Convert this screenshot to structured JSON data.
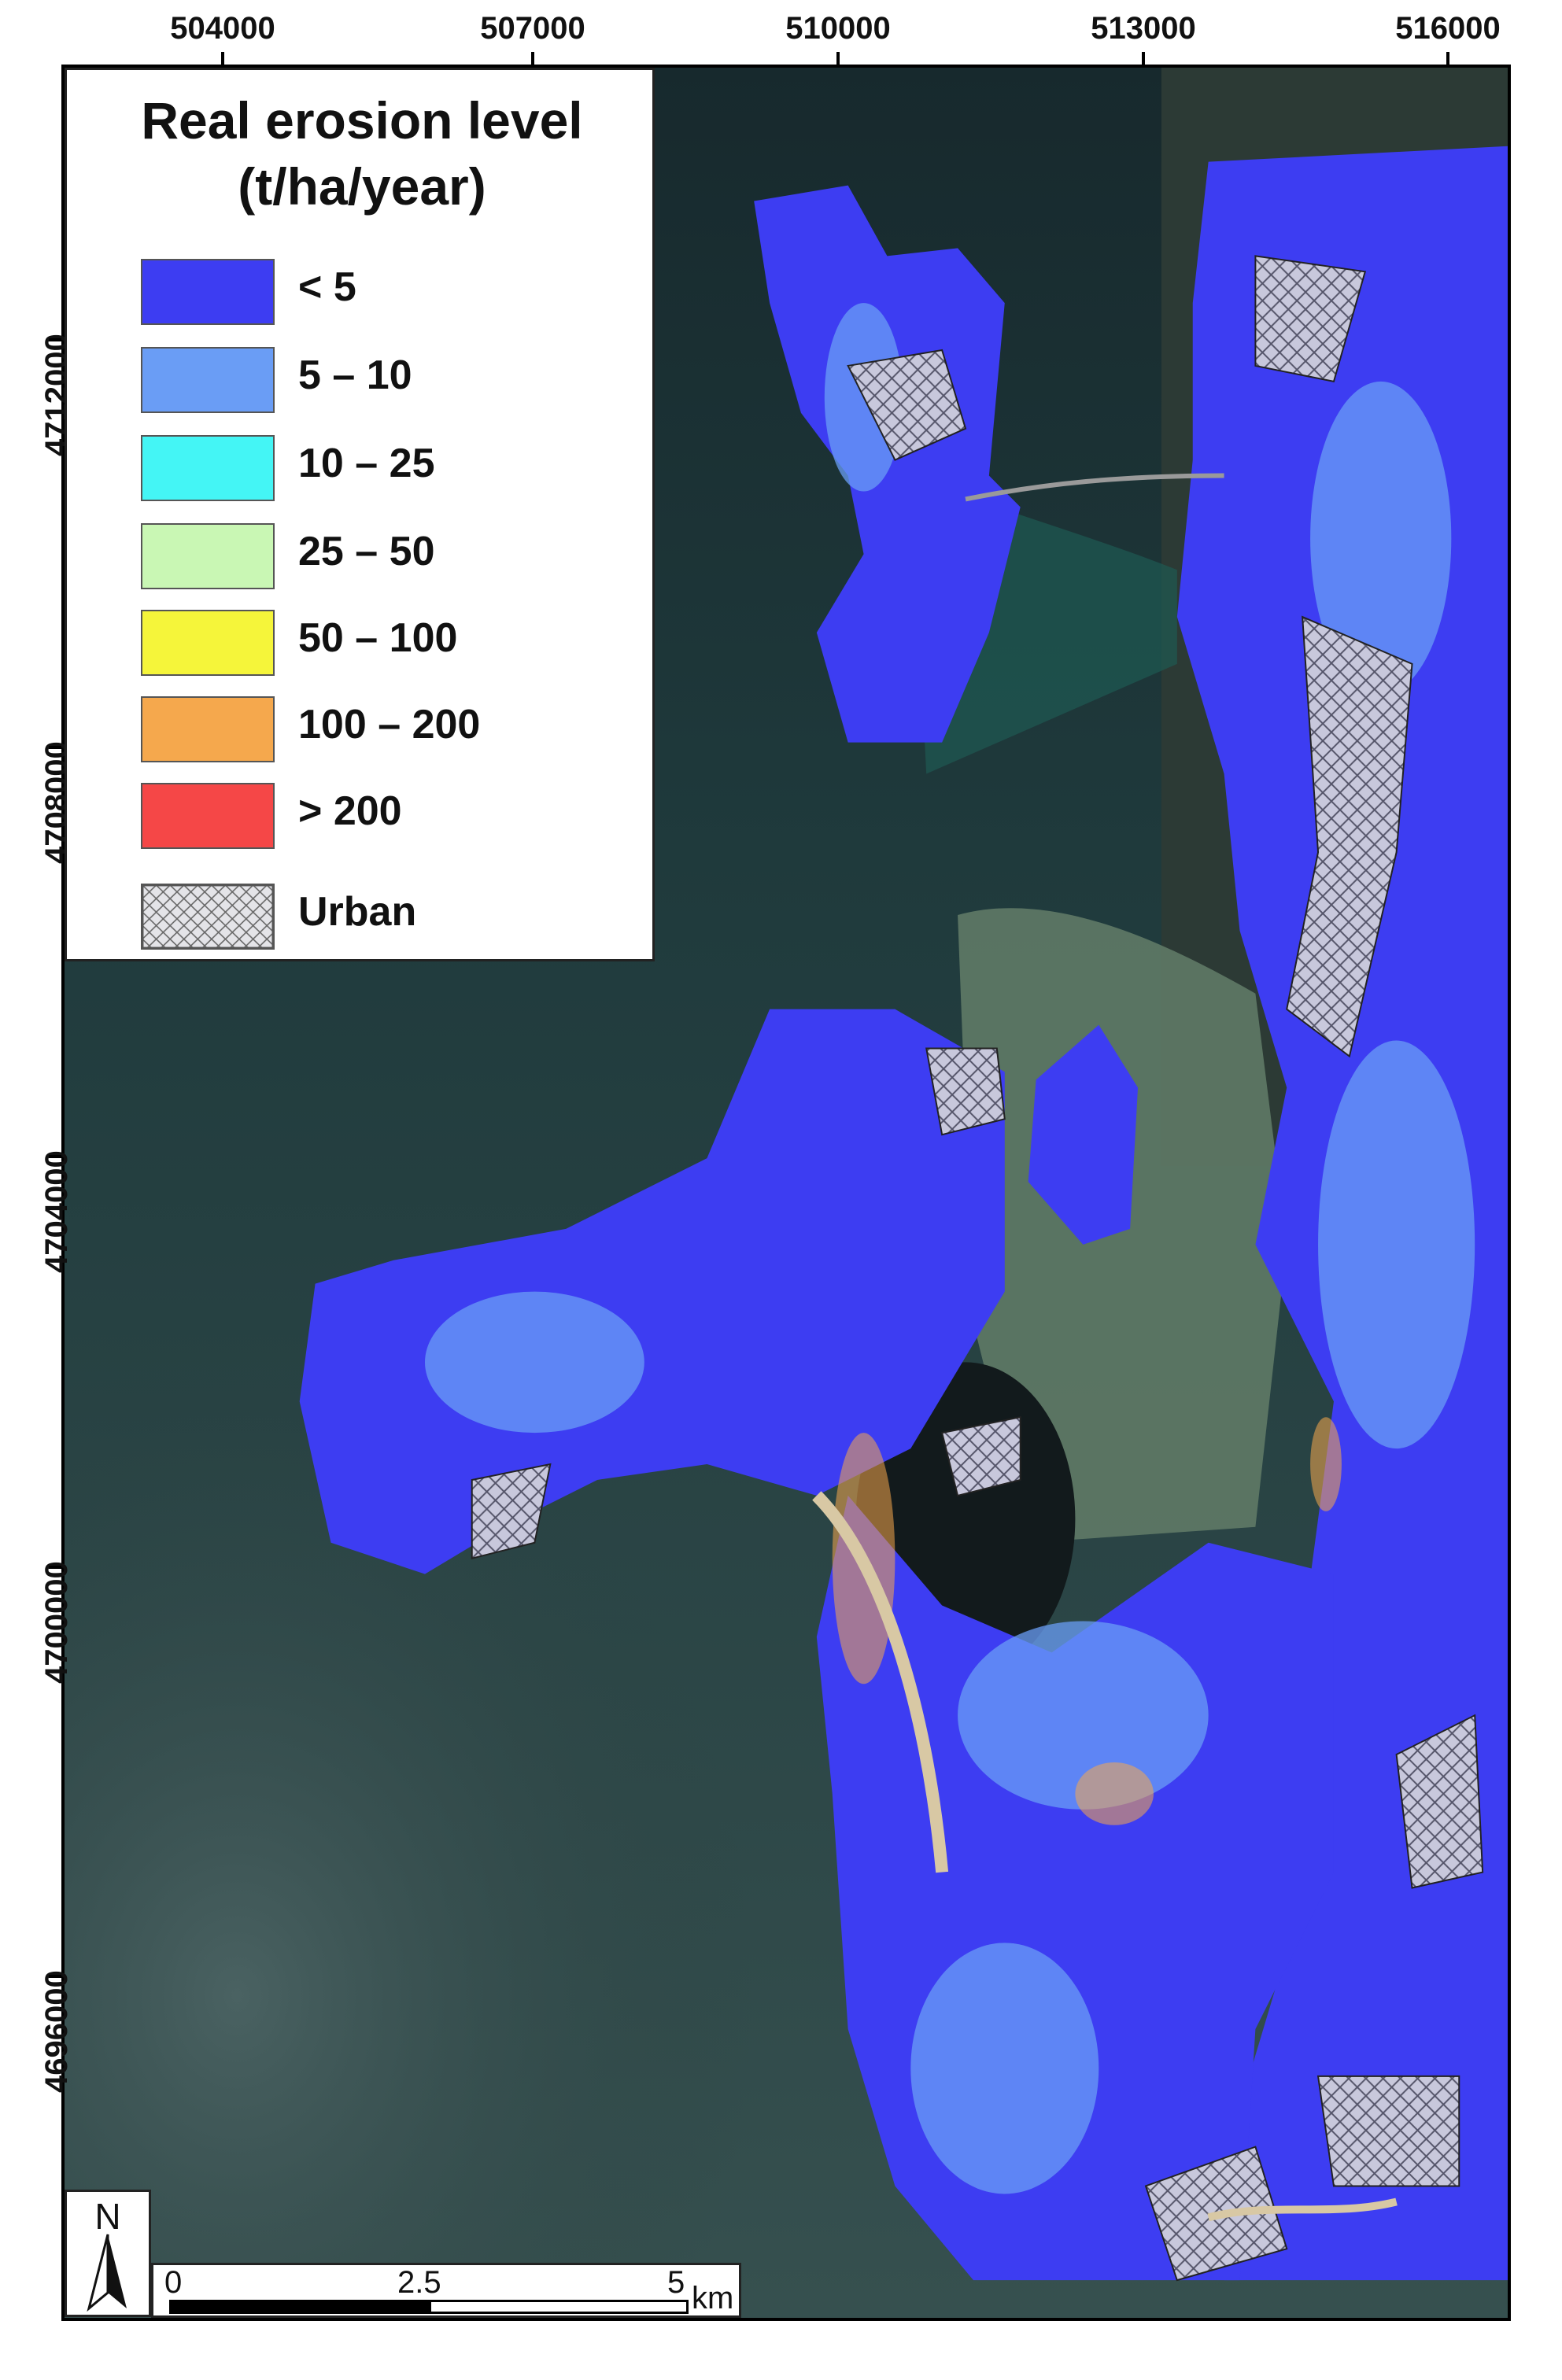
{
  "map": {
    "x_ticks": [
      "504000",
      "507000",
      "510000",
      "513000",
      "516000"
    ],
    "y_ticks": [
      "4712000",
      "4708000",
      "4704000",
      "4700000",
      "4696000"
    ]
  },
  "legend": {
    "title_line1": "Real erosion level",
    "title_line2": "(t/ha/year)",
    "classes": [
      {
        "label": "< 5",
        "color": "#3d3df2"
      },
      {
        "label": "5 – 10",
        "color": "#6a9df5"
      },
      {
        "label": "10 – 25",
        "color": "#44f5f5"
      },
      {
        "label": "25 – 50",
        "color": "#c9f7b4"
      },
      {
        "label": "50 – 100",
        "color": "#f5f53a"
      },
      {
        "label": "100 – 200",
        "color": "#f5a84d"
      },
      {
        "label": "> 200",
        "color": "#f54747"
      }
    ],
    "urban_label": "Urban",
    "urban_color": "#c8c8d8"
  },
  "north_arrow": {
    "label": "N"
  },
  "scale_bar": {
    "labels": [
      "0",
      "2.5",
      "5"
    ],
    "unit": "km"
  },
  "colors": {
    "sea_dark": "#1c2c30",
    "sea_light": "#3b5556",
    "shallow": "#1e6a5e",
    "erosion_low": "#3d3df2",
    "erosion_mid": "#6a9df5"
  }
}
